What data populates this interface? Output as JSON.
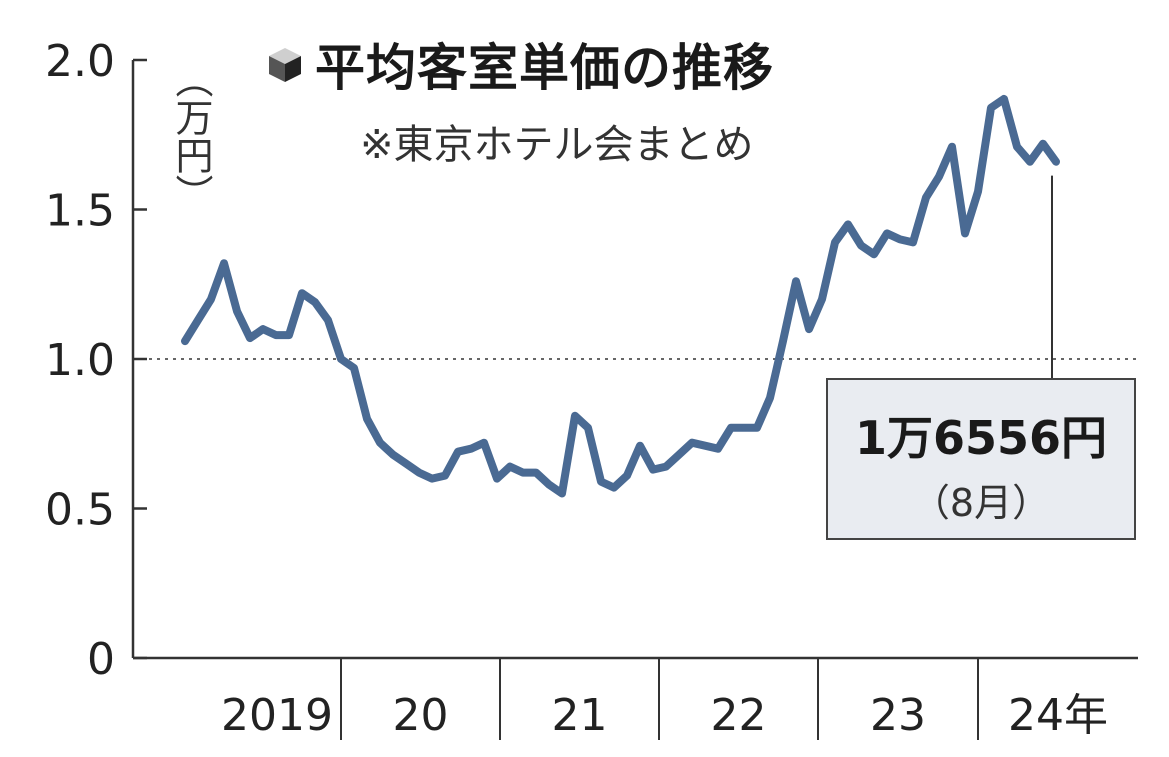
{
  "title": "平均客室単価の推移",
  "source_note": "※東京ホテル会まとめ",
  "unit_label": "（万円）",
  "colors": {
    "line": "#4a6a93",
    "axis": "#333333",
    "callout_bg": "#e9ecf1"
  },
  "callout": {
    "value": "1万6556円",
    "month": "（8月）"
  },
  "chart_data": {
    "type": "line",
    "title": "平均客室単価の推移",
    "ylabel": "（万円）",
    "ylim": [
      0,
      2.0
    ],
    "yticks": [
      "0",
      "0.5",
      "1.0",
      "1.5",
      "2.0"
    ],
    "year_labels": [
      "2019",
      "20",
      "21",
      "22",
      "23",
      "24年"
    ],
    "reference_line": 1.0,
    "x_start": "2019-01",
    "x_end": "2024-08",
    "series": [
      {
        "values": [
          1.06,
          1.13,
          1.2,
          1.32,
          1.16,
          1.07,
          1.1,
          1.08,
          1.08,
          1.22,
          1.19,
          1.13,
          1.0,
          0.97,
          0.8,
          0.72,
          0.68,
          0.65,
          0.62,
          0.6,
          0.61,
          0.69,
          0.7,
          0.72,
          0.6,
          0.64,
          0.62,
          0.62,
          0.58,
          0.55,
          0.81,
          0.77,
          0.59,
          0.57,
          0.61,
          0.71,
          0.63,
          0.64,
          0.68,
          0.72,
          0.71,
          0.7,
          0.77,
          0.77,
          0.77,
          0.87,
          1.06,
          1.26,
          1.1,
          1.2,
          1.39,
          1.45,
          1.38,
          1.35,
          1.42,
          1.4,
          1.39,
          1.54,
          1.61,
          1.71,
          1.42,
          1.56,
          1.84,
          1.87,
          1.71,
          1.66,
          1.72,
          1.66
        ]
      }
    ]
  }
}
